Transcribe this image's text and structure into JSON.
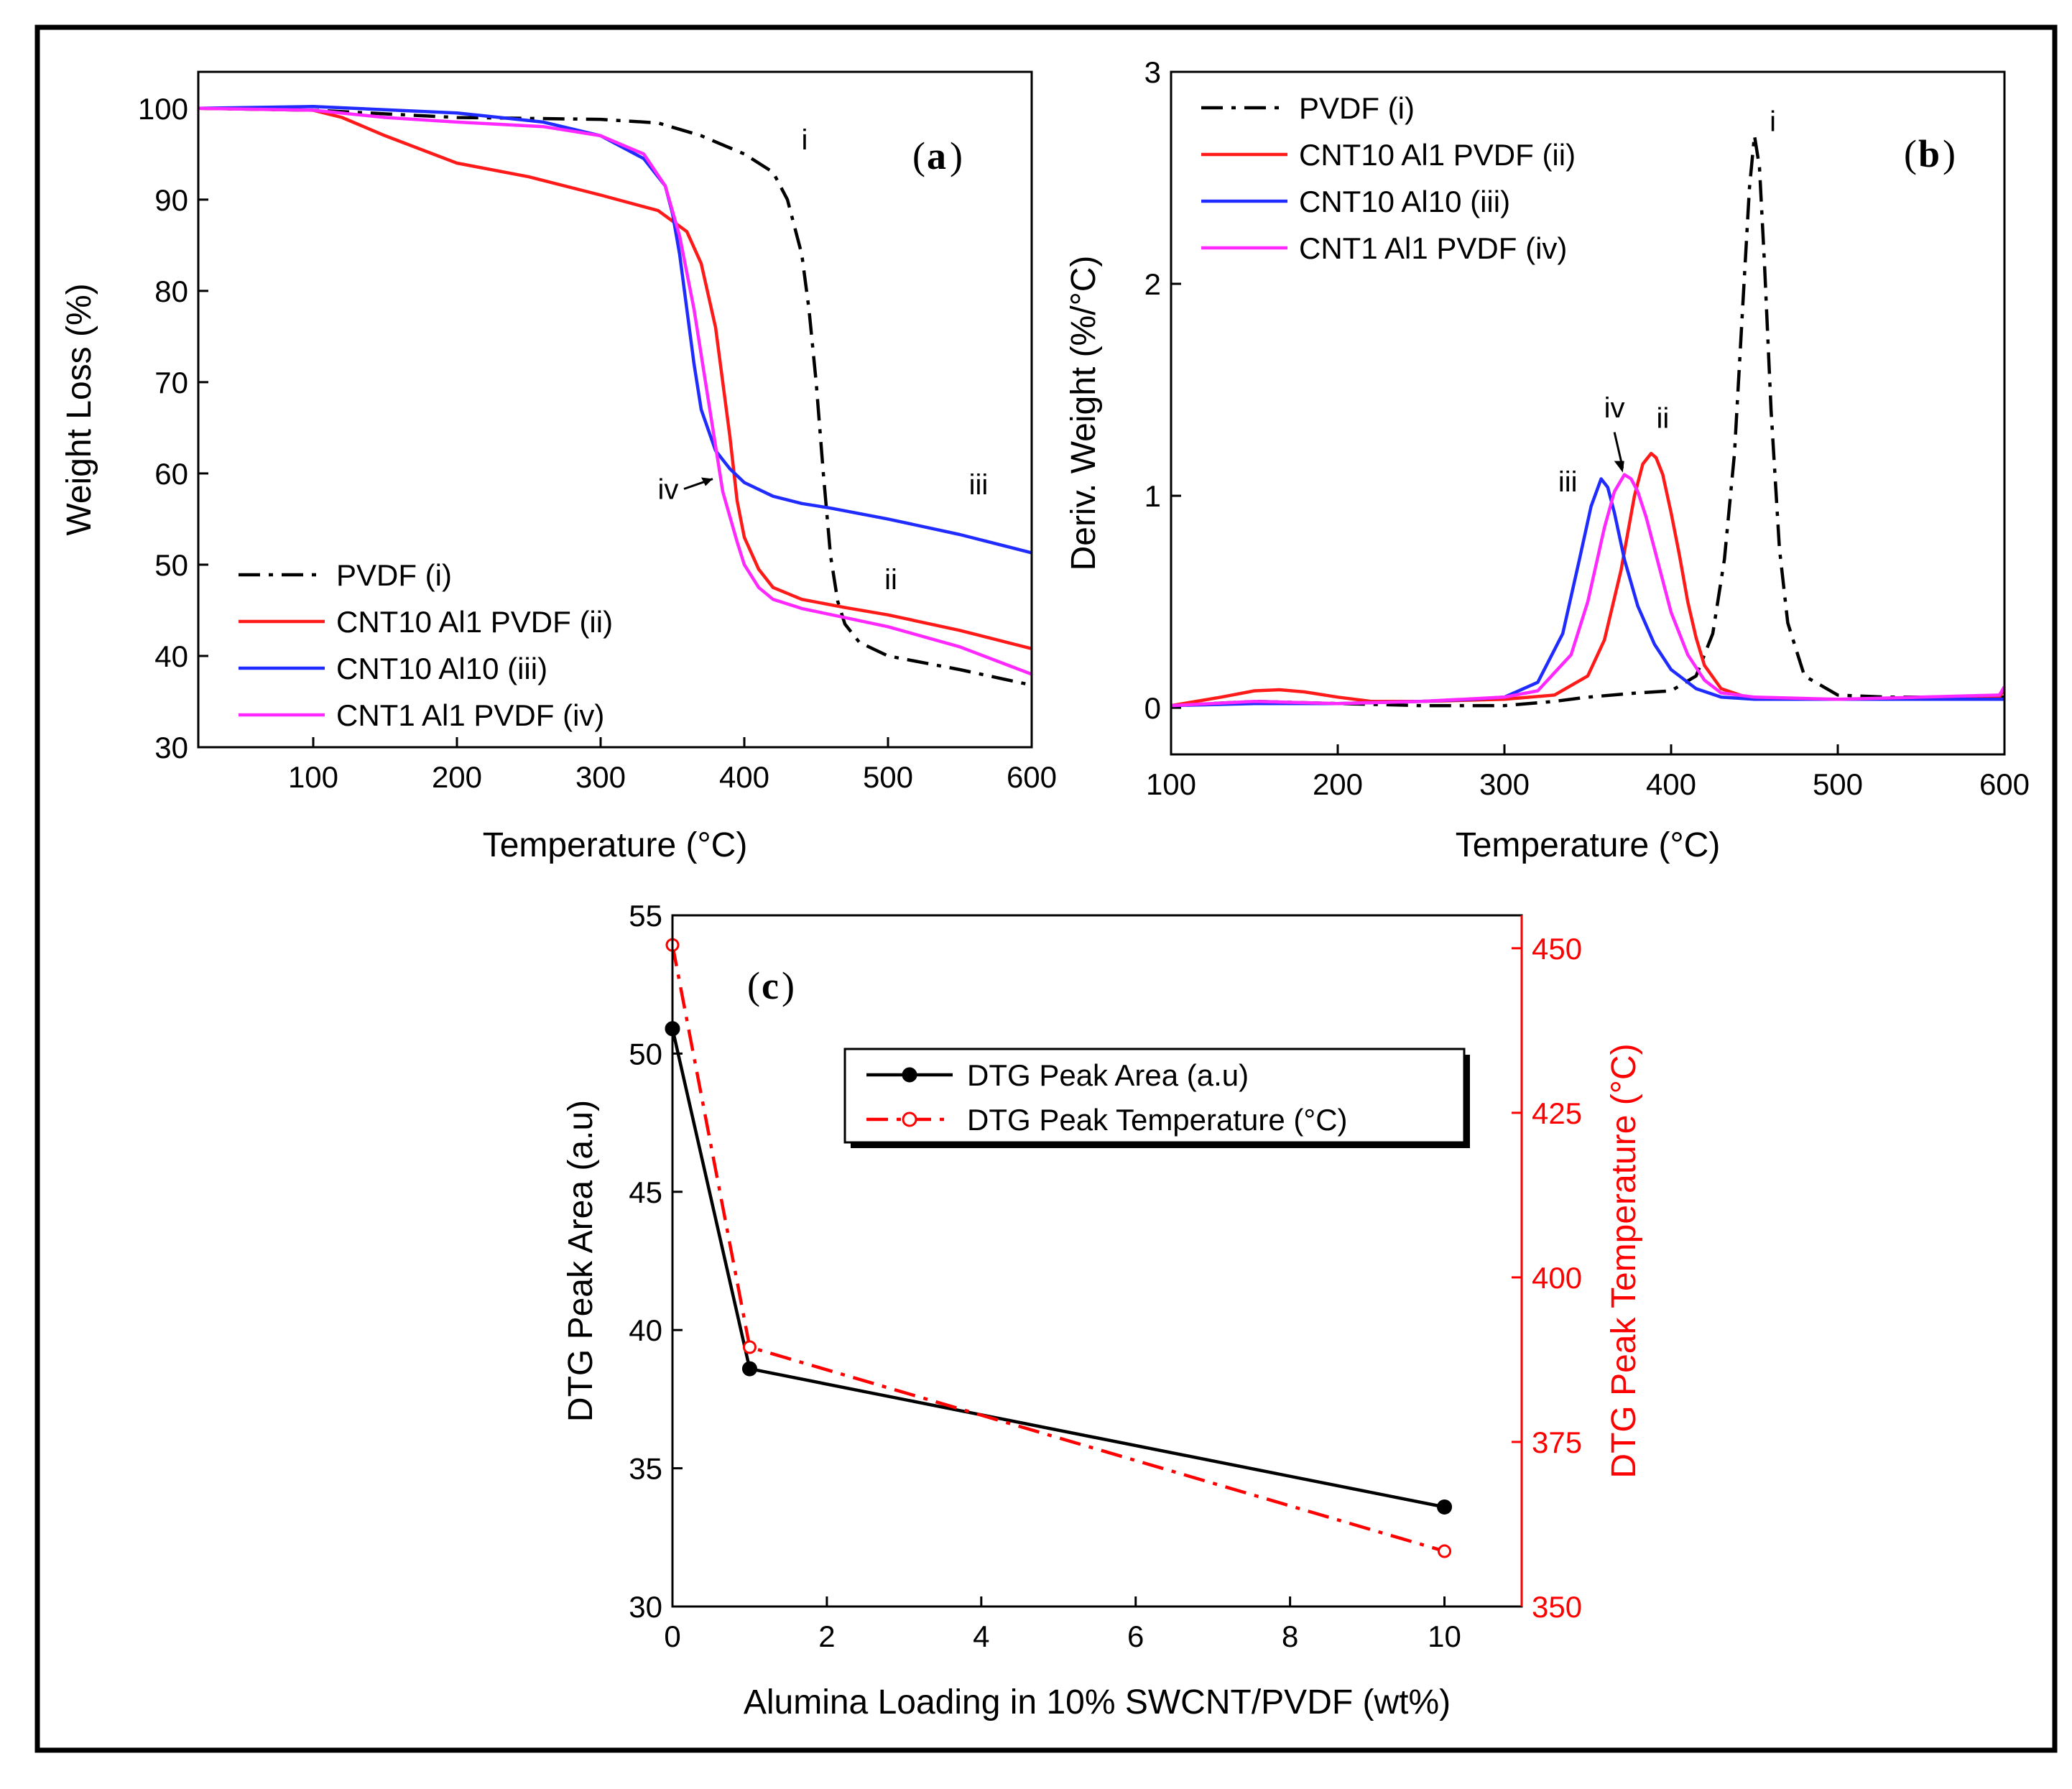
{
  "colors": {
    "PVDF (i)": "#000000",
    "CNT10 Al1 PVDF (ii)": "#ff1a1a",
    "CNT10 Al10 (iii)": "#1f2bff",
    "CNT1 Al1 PVDF (iv)": "#ff29ff",
    "peak_area": "#000000",
    "peak_temp": "#ff0000"
  },
  "chart_data": [
    {
      "panel": "a",
      "type": "line",
      "label": "a",
      "xlabel": "Temperature (°C)",
      "ylabel": "Weight Loss (%)",
      "xlim": [
        20,
        600
      ],
      "ylim": [
        30,
        104
      ],
      "xticks": [
        100,
        200,
        300,
        400,
        500,
        600
      ],
      "yticks": [
        30,
        40,
        50,
        60,
        70,
        80,
        90,
        100
      ],
      "legend_position": "bottom-left",
      "series": [
        {
          "name": "PVDF (i)",
          "dash": "dashdot",
          "x": [
            20,
            100,
            200,
            300,
            340,
            370,
            400,
            420,
            430,
            440,
            445,
            450,
            455,
            460,
            465,
            470,
            480,
            500,
            550,
            600
          ],
          "y": [
            100,
            99.8,
            99,
            98.8,
            98.4,
            97,
            95,
            93,
            90,
            84,
            78,
            70,
            60,
            51,
            46,
            43.5,
            41.5,
            40,
            38.5,
            36.8
          ]
        },
        {
          "name": "CNT10 Al1 PVDF (ii)",
          "dash": "solid",
          "x": [
            20,
            100,
            120,
            150,
            200,
            250,
            300,
            340,
            360,
            370,
            380,
            390,
            395,
            400,
            410,
            420,
            440,
            470,
            500,
            550,
            600
          ],
          "y": [
            100,
            99.8,
            99,
            97,
            94,
            92.5,
            90.5,
            88.8,
            86.5,
            83,
            76,
            64,
            57,
            53,
            49.5,
            47.5,
            46.2,
            45.3,
            44.5,
            42.8,
            40.8
          ]
        },
        {
          "name": "CNT10 Al10 (iii)",
          "dash": "solid",
          "x": [
            20,
            100,
            200,
            260,
            300,
            330,
            345,
            350,
            355,
            360,
            365,
            370,
            380,
            390,
            400,
            420,
            440,
            460,
            500,
            550,
            600
          ],
          "y": [
            100,
            100.2,
            99.5,
            98.5,
            97,
            94.5,
            91.5,
            88.5,
            84,
            78,
            72,
            67,
            62.5,
            60.5,
            59,
            57.5,
            56.7,
            56.2,
            55,
            53.3,
            51.3
          ]
        },
        {
          "name": "CNT1 Al1 PVDF (iv)",
          "dash": "solid",
          "x": [
            20,
            100,
            150,
            200,
            260,
            300,
            330,
            345,
            355,
            365,
            375,
            385,
            395,
            400,
            410,
            420,
            440,
            470,
            500,
            550,
            600
          ],
          "y": [
            100,
            99.8,
            99,
            98.5,
            98,
            97,
            95,
            91.5,
            86,
            78,
            68,
            58,
            52.5,
            50,
            47.5,
            46.2,
            45.2,
            44.2,
            43.2,
            41,
            38
          ]
        }
      ],
      "annotations": [
        {
          "text": "i",
          "x": 442,
          "y": 95.5
        },
        {
          "text": "ii",
          "x": 502,
          "y": 47.3
        },
        {
          "text": "iii",
          "x": 563,
          "y": 57.7
        },
        {
          "text": "iv",
          "x": 347,
          "y": 57.2
        }
      ]
    },
    {
      "panel": "b",
      "type": "line",
      "label": "b",
      "xlabel": "Temperature (°C)",
      "ylabel": "Deriv. Weight (%/°C)",
      "xlim": [
        100,
        600
      ],
      "ylim": [
        -0.22,
        3
      ],
      "xticks": [
        100,
        200,
        300,
        400,
        500,
        600
      ],
      "yticks": [
        0,
        1,
        2,
        3
      ],
      "legend_position": "top-left",
      "series": [
        {
          "name": "PVDF (i)",
          "dash": "dashdot",
          "x": [
            100,
            150,
            200,
            250,
            300,
            330,
            350,
            380,
            400,
            415,
            425,
            432,
            438,
            443,
            447,
            450,
            453,
            456,
            460,
            465,
            470,
            480,
            500,
            530,
            560,
            600
          ],
          "y": [
            0.01,
            0.03,
            0.02,
            0.01,
            0.01,
            0.03,
            0.05,
            0.07,
            0.08,
            0.15,
            0.35,
            0.7,
            1.2,
            1.9,
            2.45,
            2.7,
            2.55,
            2.1,
            1.4,
            0.75,
            0.4,
            0.15,
            0.06,
            0.05,
            0.05,
            0.05
          ]
        },
        {
          "name": "CNT10 Al1 PVDF (ii)",
          "dash": "solid",
          "x": [
            100,
            130,
            150,
            165,
            180,
            200,
            220,
            250,
            300,
            330,
            350,
            360,
            370,
            378,
            383,
            388,
            391,
            395,
            400,
            405,
            410,
            415,
            420,
            430,
            445,
            470,
            500,
            550,
            597,
            600
          ],
          "y": [
            0.01,
            0.05,
            0.08,
            0.085,
            0.075,
            0.05,
            0.03,
            0.03,
            0.04,
            0.06,
            0.15,
            0.32,
            0.65,
            1.0,
            1.15,
            1.2,
            1.18,
            1.1,
            0.92,
            0.72,
            0.5,
            0.33,
            0.2,
            0.09,
            0.05,
            0.04,
            0.04,
            0.04,
            0.05,
            0.09
          ]
        },
        {
          "name": "CNT10 Al10 (iii)",
          "dash": "solid",
          "x": [
            100,
            150,
            200,
            250,
            280,
            300,
            320,
            335,
            345,
            352,
            358,
            362,
            366,
            372,
            380,
            390,
            400,
            415,
            430,
            450,
            500,
            550,
            600
          ],
          "y": [
            0.01,
            0.02,
            0.02,
            0.03,
            0.04,
            0.05,
            0.12,
            0.35,
            0.7,
            0.95,
            1.08,
            1.04,
            0.92,
            0.7,
            0.48,
            0.3,
            0.18,
            0.09,
            0.05,
            0.04,
            0.04,
            0.04,
            0.04
          ]
        },
        {
          "name": "CNT1 Al1 PVDF (iv)",
          "dash": "solid",
          "x": [
            100,
            150,
            200,
            250,
            300,
            320,
            340,
            350,
            360,
            366,
            372,
            376,
            380,
            385,
            390,
            400,
            410,
            420,
            430,
            450,
            500,
            550,
            597,
            600
          ],
          "y": [
            0.01,
            0.03,
            0.02,
            0.03,
            0.05,
            0.08,
            0.25,
            0.5,
            0.85,
            1.02,
            1.1,
            1.08,
            1.02,
            0.9,
            0.75,
            0.45,
            0.25,
            0.13,
            0.07,
            0.05,
            0.04,
            0.05,
            0.06,
            0.1
          ]
        }
      ],
      "annotations": [
        {
          "text": "i",
          "x": 461,
          "y": 2.72
        },
        {
          "text": "ii",
          "x": 395,
          "y": 1.32
        },
        {
          "text": "iii",
          "x": 338,
          "y": 1.02
        },
        {
          "text": "iv",
          "x": 366,
          "y": 1.37
        }
      ]
    },
    {
      "panel": "c",
      "type": "line",
      "label": "c",
      "xlabel": "Alumina Loading in 10% SWCNT/PVDF (wt%)",
      "ylabel": "DTG Peak Area (a.u)",
      "y2label": "DTG Peak Temperature (°C)",
      "xlim": [
        0,
        11
      ],
      "ylim": [
        30,
        55
      ],
      "y2lim": [
        350,
        455
      ],
      "xticks": [
        0,
        2,
        4,
        6,
        8,
        10
      ],
      "yticks": [
        30,
        35,
        40,
        45,
        50,
        55
      ],
      "y2ticks": [
        350,
        375,
        400,
        425,
        450
      ],
      "legend_position": "upper-center",
      "series": [
        {
          "name": "DTG Peak Area (a.u)",
          "axis": "left",
          "marker": "filled-circle",
          "dash": "solid",
          "x": [
            0,
            1,
            10
          ],
          "y": [
            50.9,
            38.6,
            33.6
          ]
        },
        {
          "name": "DTG Peak Temperature (°C)",
          "axis": "right",
          "marker": "open-circle",
          "dash": "dashdot",
          "x": [
            0,
            1,
            10
          ],
          "y": [
            450.5,
            389.4,
            358.4
          ]
        }
      ]
    }
  ]
}
